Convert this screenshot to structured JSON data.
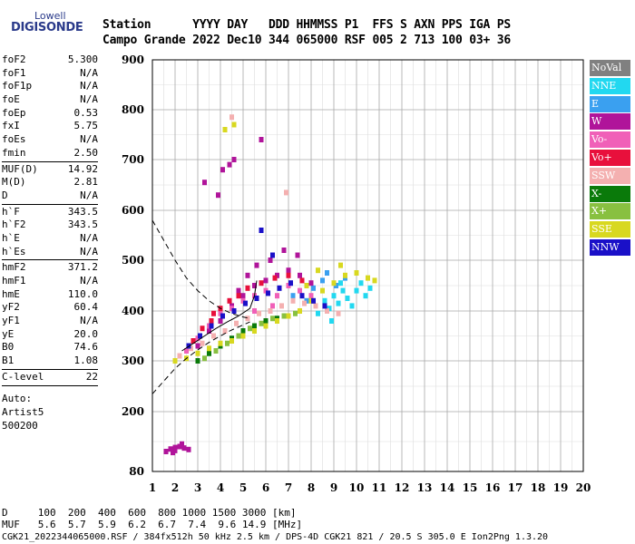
{
  "logo": {
    "top": "Lowell",
    "main": "DIGISONDE"
  },
  "header": {
    "line1": "Station      YYYY DAY   DDD HHMMSS P1  FFS S AXN PPS IGA PS",
    "line2": "Campo Grande 2022 Dec10 344 065000 RSF 005 2 713 100 03+ 36"
  },
  "params": [
    {
      "group": [
        {
          "k": "foF2",
          "v": "5.300"
        },
        {
          "k": "foF1",
          "v": "N/A"
        },
        {
          "k": "foF1p",
          "v": "N/A"
        },
        {
          "k": "foE",
          "v": "N/A"
        },
        {
          "k": "foEp",
          "v": "0.53"
        },
        {
          "k": "fxI",
          "v": "5.75"
        },
        {
          "k": "foEs",
          "v": "N/A"
        },
        {
          "k": "fmin",
          "v": "2.50"
        }
      ]
    },
    {
      "group": [
        {
          "k": "MUF(D)",
          "v": "14.92"
        },
        {
          "k": "M(D)",
          "v": "2.81"
        },
        {
          "k": "D",
          "v": "N/A"
        }
      ]
    },
    {
      "group": [
        {
          "k": "h`F",
          "v": "343.5"
        },
        {
          "k": "h`F2",
          "v": "343.5"
        },
        {
          "k": "h`E",
          "v": "N/A"
        },
        {
          "k": "h`Es",
          "v": "N/A"
        }
      ]
    },
    {
      "group": [
        {
          "k": "hmF2",
          "v": "371.2"
        },
        {
          "k": "hmF1",
          "v": "N/A"
        },
        {
          "k": "hmE",
          "v": "110.0"
        },
        {
          "k": "yF2",
          "v": "60.4"
        },
        {
          "k": "yF1",
          "v": "N/A"
        },
        {
          "k": "yE",
          "v": "20.0"
        },
        {
          "k": "B0",
          "v": "74.6"
        },
        {
          "k": "B1",
          "v": "1.08"
        }
      ]
    },
    {
      "group": [
        {
          "k": "C-level",
          "v": "22"
        }
      ]
    }
  ],
  "autoscale": [
    "Auto:",
    "Artist5",
    "500200"
  ],
  "footer": {
    "d_line": "D     100  200  400  600  800 1000 1500 3000 [km]",
    "muf_line": "MUF   5.6  5.7  5.9  6.2  6.7  7.4  9.6 14.9 [MHz]",
    "file_line": "CGK21_2022344065000.RSF / 384fx512h 50 kHz 2.5 km / DPS-4D CGK21 821 / 20.5 S 305.0 E Ion2Png 1.3.20"
  },
  "legend": [
    {
      "label": "NoVal",
      "color": "#808080"
    },
    {
      "label": "NNE",
      "color": "#22d8f0"
    },
    {
      "label": "E",
      "color": "#3aa0f0"
    },
    {
      "label": "W",
      "color": "#b0149a"
    },
    {
      "label": "Vo-",
      "color": "#f060b8"
    },
    {
      "label": "Vo+",
      "color": "#e8103c"
    },
    {
      "label": "SSW",
      "color": "#f4b0b0"
    },
    {
      "label": "X-",
      "color": "#0a7a0a"
    },
    {
      "label": "X+",
      "color": "#88c040"
    },
    {
      "label": "SSE",
      "color": "#d8d820"
    },
    {
      "label": "NNW",
      "color": "#1a10c8"
    }
  ],
  "chart_data": {
    "type": "scatter",
    "title": "",
    "xlabel": "",
    "ylabel": "",
    "xlim": [
      1,
      20
    ],
    "ylim": [
      80,
      900
    ],
    "x_ticks": [
      1,
      2,
      3,
      4,
      5,
      6,
      7,
      8,
      9,
      10,
      11,
      12,
      13,
      14,
      15,
      16,
      17,
      18,
      19,
      20
    ],
    "y_ticks": [
      80,
      200,
      300,
      400,
      500,
      600,
      700,
      800,
      900
    ],
    "grid": true,
    "series": [
      {
        "name": "NNE",
        "color": "#22d8f0",
        "points": [
          [
            8.3,
            395
          ],
          [
            8.8,
            405
          ],
          [
            9.2,
            415
          ],
          [
            9.6,
            425
          ],
          [
            10.0,
            440
          ],
          [
            10.2,
            455
          ],
          [
            9.4,
            440
          ],
          [
            9.0,
            430
          ],
          [
            8.6,
            420
          ],
          [
            10.4,
            430
          ],
          [
            9.8,
            410
          ],
          [
            8.9,
            380
          ],
          [
            10.6,
            445
          ],
          [
            9.3,
            455
          ]
        ]
      },
      {
        "name": "E",
        "color": "#3aa0f0",
        "points": [
          [
            7.2,
            430
          ],
          [
            7.8,
            420
          ],
          [
            8.1,
            445
          ],
          [
            8.5,
            460
          ],
          [
            9.1,
            450
          ],
          [
            9.5,
            465
          ],
          [
            8.7,
            475
          ]
        ]
      },
      {
        "name": "W",
        "color": "#b0149a",
        "points": [
          [
            3.0,
            330
          ],
          [
            3.5,
            360
          ],
          [
            4.0,
            380
          ],
          [
            4.5,
            410
          ],
          [
            5.0,
            430
          ],
          [
            5.5,
            450
          ],
          [
            6.0,
            460
          ],
          [
            6.5,
            470
          ],
          [
            7.0,
            480
          ],
          [
            7.5,
            470
          ],
          [
            8.0,
            455
          ],
          [
            6.2,
            500
          ],
          [
            5.6,
            490
          ],
          [
            4.8,
            440
          ],
          [
            3.9,
            630
          ],
          [
            4.1,
            680
          ],
          [
            4.4,
            690
          ],
          [
            4.6,
            700
          ],
          [
            3.3,
            655
          ],
          [
            5.8,
            740
          ],
          [
            6.8,
            520
          ],
          [
            7.4,
            510
          ],
          [
            5.2,
            470
          ]
        ]
      },
      {
        "name": "Vo-",
        "color": "#f060b8",
        "points": [
          [
            2.5,
            320
          ],
          [
            3.0,
            345
          ],
          [
            3.5,
            370
          ],
          [
            4.0,
            395
          ],
          [
            4.5,
            405
          ],
          [
            5.0,
            420
          ],
          [
            5.5,
            430
          ],
          [
            6.0,
            440
          ],
          [
            6.5,
            430
          ],
          [
            7.0,
            450
          ],
          [
            7.5,
            440
          ],
          [
            8.0,
            430
          ],
          [
            5.5,
            400
          ],
          [
            6.3,
            410
          ]
        ]
      },
      {
        "name": "Vo+",
        "color": "#e8103c",
        "points": [
          [
            2.8,
            340
          ],
          [
            3.2,
            365
          ],
          [
            3.6,
            380
          ],
          [
            4.0,
            405
          ],
          [
            4.4,
            420
          ],
          [
            4.8,
            430
          ],
          [
            5.2,
            445
          ],
          [
            5.8,
            455
          ],
          [
            6.4,
            465
          ],
          [
            7.0,
            470
          ],
          [
            7.6,
            460
          ],
          [
            3.7,
            395
          ]
        ]
      },
      {
        "name": "SSW",
        "color": "#f4b0b0",
        "points": [
          [
            2.2,
            310
          ],
          [
            2.7,
            325
          ],
          [
            3.2,
            335
          ],
          [
            3.7,
            350
          ],
          [
            4.2,
            360
          ],
          [
            4.7,
            375
          ],
          [
            5.2,
            385
          ],
          [
            5.7,
            395
          ],
          [
            6.2,
            400
          ],
          [
            6.7,
            410
          ],
          [
            7.2,
            420
          ],
          [
            7.7,
            415
          ],
          [
            8.2,
            410
          ],
          [
            8.7,
            400
          ],
          [
            9.2,
            395
          ],
          [
            6.9,
            635
          ],
          [
            4.5,
            785
          ]
        ]
      },
      {
        "name": "X-",
        "color": "#0a7a0a",
        "points": [
          [
            3.0,
            300
          ],
          [
            3.5,
            315
          ],
          [
            4.0,
            330
          ],
          [
            4.5,
            345
          ],
          [
            5.0,
            360
          ],
          [
            5.5,
            370
          ],
          [
            6.0,
            380
          ],
          [
            6.5,
            385
          ],
          [
            7.0,
            390
          ]
        ]
      },
      {
        "name": "X+",
        "color": "#88c040",
        "points": [
          [
            3.3,
            305
          ],
          [
            3.8,
            320
          ],
          [
            4.3,
            335
          ],
          [
            4.8,
            350
          ],
          [
            5.3,
            365
          ],
          [
            5.8,
            375
          ],
          [
            6.3,
            385
          ],
          [
            6.8,
            390
          ],
          [
            7.3,
            395
          ]
        ]
      },
      {
        "name": "SSE",
        "color": "#d8d820",
        "points": [
          [
            2.0,
            300
          ],
          [
            2.5,
            305
          ],
          [
            3.0,
            315
          ],
          [
            3.5,
            325
          ],
          [
            4.0,
            335
          ],
          [
            4.5,
            340
          ],
          [
            5.0,
            350
          ],
          [
            5.5,
            360
          ],
          [
            6.0,
            370
          ],
          [
            6.5,
            380
          ],
          [
            7.0,
            390
          ],
          [
            7.5,
            400
          ],
          [
            8.0,
            420
          ],
          [
            8.5,
            440
          ],
          [
            9.0,
            455
          ],
          [
            9.5,
            470
          ],
          [
            10.0,
            475
          ],
          [
            10.5,
            465
          ],
          [
            10.8,
            460
          ],
          [
            7.8,
            450
          ],
          [
            8.3,
            480
          ],
          [
            9.3,
            490
          ],
          [
            4.2,
            760
          ],
          [
            4.6,
            770
          ]
        ]
      },
      {
        "name": "NNW",
        "color": "#1a10c8",
        "points": [
          [
            2.6,
            330
          ],
          [
            3.1,
            350
          ],
          [
            3.6,
            370
          ],
          [
            4.1,
            390
          ],
          [
            4.6,
            400
          ],
          [
            5.1,
            415
          ],
          [
            5.6,
            425
          ],
          [
            6.1,
            435
          ],
          [
            6.6,
            445
          ],
          [
            7.1,
            455
          ],
          [
            7.6,
            430
          ],
          [
            8.1,
            420
          ],
          [
            8.6,
            410
          ],
          [
            5.8,
            560
          ],
          [
            6.3,
            510
          ]
        ]
      },
      {
        "name": "Es-layer",
        "color": "#b0149a",
        "points": [
          [
            1.6,
            120
          ],
          [
            1.8,
            125
          ],
          [
            2.0,
            128
          ],
          [
            2.2,
            130
          ],
          [
            2.4,
            127
          ],
          [
            2.6,
            124
          ],
          [
            2.0,
            122
          ],
          [
            2.3,
            135
          ],
          [
            1.9,
            118
          ]
        ]
      }
    ],
    "profile_curves": [
      {
        "name": "profile-dashed-upper",
        "style": "dashed",
        "points": [
          [
            1.0,
            580
          ],
          [
            1.5,
            540
          ],
          [
            2.0,
            500
          ],
          [
            2.5,
            465
          ],
          [
            3.0,
            440
          ],
          [
            3.5,
            420
          ],
          [
            4.0,
            405
          ],
          [
            4.5,
            395
          ],
          [
            5.0,
            388
          ],
          [
            5.3,
            385
          ]
        ]
      },
      {
        "name": "profile-dashed-lower",
        "style": "dashed",
        "points": [
          [
            1.0,
            235
          ],
          [
            1.5,
            260
          ],
          [
            2.0,
            285
          ],
          [
            2.5,
            305
          ],
          [
            3.0,
            322
          ],
          [
            3.5,
            337
          ],
          [
            4.0,
            350
          ],
          [
            4.5,
            362
          ],
          [
            5.0,
            372
          ],
          [
            5.3,
            378
          ]
        ]
      },
      {
        "name": "trace-line",
        "style": "solid",
        "points": [
          [
            2.3,
            320
          ],
          [
            2.8,
            335
          ],
          [
            3.3,
            350
          ],
          [
            3.8,
            365
          ],
          [
            4.3,
            378
          ],
          [
            4.8,
            390
          ],
          [
            5.3,
            405
          ],
          [
            5.5,
            430
          ],
          [
            5.6,
            460
          ]
        ]
      }
    ]
  }
}
